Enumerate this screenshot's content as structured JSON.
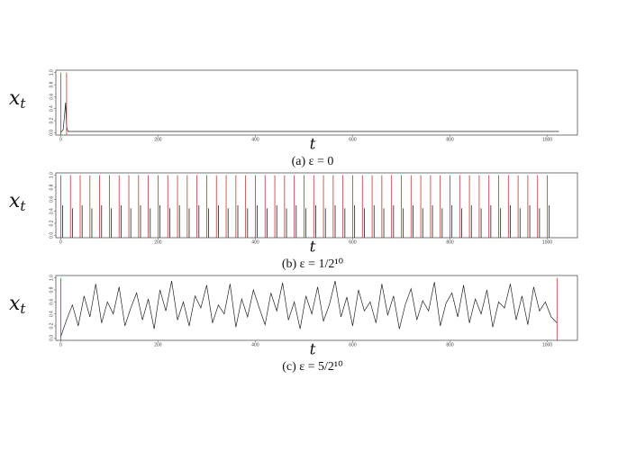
{
  "chart_data": [
    {
      "type": "line",
      "ylabel": "x",
      "ylabel_subscript": "t",
      "xlabel": "t",
      "caption": "(a) ε = 0",
      "xlim": [
        -10,
        1062
      ],
      "ylim": [
        -0.04,
        1.04
      ],
      "xticks": [
        0,
        200,
        400,
        600,
        800,
        1000
      ],
      "yticks": [
        {
          "value": 0,
          "label": "0.0"
        },
        0.2,
        0.4,
        0.6,
        0.8,
        {
          "value": 1,
          "label": "1.0"
        }
      ],
      "series": [
        {
          "color": "#222222",
          "style": "line",
          "x": [
            0,
            5,
            8,
            10,
            12,
            15,
            1024
          ],
          "values": [
            0,
            0.05,
            0.3,
            0.5,
            0.1,
            0.02,
            0.02
          ]
        },
        {
          "color": "#c0392b",
          "style": "spikes",
          "x": [
            0,
            12
          ],
          "values": [
            1,
            1
          ]
        }
      ]
    },
    {
      "type": "line",
      "ylabel": "x",
      "ylabel_subscript": "t",
      "xlabel": "t",
      "caption": "(b) ε = 1/2¹⁰",
      "xlim": [
        -10,
        1062
      ],
      "ylim": [
        -0.04,
        1.04
      ],
      "xticks": [
        0,
        200,
        400,
        600,
        800,
        1000
      ],
      "yticks": [
        {
          "value": 0,
          "label": "0.0"
        },
        0.2,
        0.4,
        0.6,
        0.8,
        {
          "value": 1,
          "label": "1.0"
        }
      ],
      "series": [
        {
          "color": "#c0392b",
          "style": "spikes",
          "x": [
            0,
            20,
            40,
            60,
            80,
            100,
            120,
            140,
            160,
            180,
            200,
            220,
            240,
            260,
            280,
            300,
            320,
            340,
            360,
            380,
            400,
            420,
            440,
            460,
            480,
            500,
            520,
            540,
            560,
            580,
            600,
            620,
            640,
            660,
            680,
            700,
            720,
            740,
            760,
            780,
            800,
            820,
            840,
            860,
            880,
            900,
            920,
            940,
            960,
            980,
            1000
          ],
          "values": [
            1,
            1,
            1,
            1,
            1,
            1,
            1,
            1,
            1,
            1,
            1,
            1,
            1,
            1,
            1,
            1,
            1,
            1,
            1,
            1,
            1,
            1,
            1,
            1,
            1,
            1,
            1,
            1,
            1,
            1,
            1,
            1,
            1,
            1,
            1,
            1,
            1,
            1,
            1,
            1,
            1,
            1,
            1,
            1,
            1,
            1,
            1,
            1,
            1,
            1,
            1
          ]
        },
        {
          "color": "#222222",
          "style": "spikes",
          "x": [
            4,
            24,
            44,
            64,
            84,
            104,
            124,
            144,
            164,
            184,
            204,
            224,
            244,
            264,
            284,
            304,
            324,
            344,
            364,
            384,
            404,
            424,
            444,
            464,
            484,
            504,
            524,
            544,
            564,
            584,
            604,
            624,
            644,
            664,
            684,
            704,
            724,
            744,
            764,
            784,
            804,
            824,
            844,
            864,
            884,
            904,
            924,
            944,
            964,
            984,
            1004
          ],
          "values": [
            0.5,
            0.45,
            0.5,
            0.45,
            0.5,
            0.45,
            0.5,
            0.45,
            0.5,
            0.45,
            0.5,
            0.45,
            0.5,
            0.45,
            0.5,
            0.45,
            0.5,
            0.45,
            0.5,
            0.45,
            0.5,
            0.45,
            0.5,
            0.45,
            0.5,
            0.45,
            0.5,
            0.45,
            0.5,
            0.45,
            0.5,
            0.45,
            0.5,
            0.45,
            0.5,
            0.45,
            0.5,
            0.45,
            0.5,
            0.45,
            0.5,
            0.45,
            0.5,
            0.45,
            0.5,
            0.45,
            0.5,
            0.45,
            0.5,
            0.45,
            0.5
          ]
        }
      ]
    },
    {
      "type": "line",
      "ylabel": "x",
      "ylabel_subscript": "t",
      "xlabel": "t",
      "caption": "(c) ε = 5/2¹⁰",
      "xlim": [
        -10,
        1062
      ],
      "ylim": [
        -0.04,
        1.04
      ],
      "xticks": [
        0,
        200,
        400,
        600,
        800,
        1000
      ],
      "yticks": [
        {
          "value": 0,
          "label": "0.0"
        },
        0.2,
        0.4,
        0.6,
        0.8,
        {
          "value": 1,
          "label": "1.0"
        }
      ],
      "series": [
        {
          "color": "#222222",
          "style": "line",
          "x": [
            0,
            12,
            24,
            36,
            48,
            60,
            72,
            84,
            96,
            108,
            120,
            132,
            144,
            156,
            168,
            180,
            192,
            204,
            216,
            228,
            240,
            252,
            264,
            276,
            288,
            300,
            312,
            324,
            336,
            348,
            360,
            372,
            384,
            396,
            408,
            420,
            432,
            444,
            456,
            468,
            480,
            492,
            504,
            516,
            528,
            540,
            552,
            564,
            576,
            588,
            600,
            612,
            624,
            636,
            648,
            660,
            672,
            684,
            696,
            708,
            720,
            732,
            744,
            756,
            768,
            780,
            792,
            804,
            816,
            828,
            840,
            852,
            864,
            876,
            888,
            900,
            912,
            924,
            936,
            948,
            960,
            972,
            984,
            996,
            1008,
            1020
          ],
          "values": [
            0.02,
            0.3,
            0.55,
            0.2,
            0.7,
            0.35,
            0.9,
            0.25,
            0.6,
            0.4,
            0.85,
            0.2,
            0.5,
            0.75,
            0.3,
            0.65,
            0.15,
            0.8,
            0.45,
            0.95,
            0.3,
            0.6,
            0.2,
            0.7,
            0.5,
            0.88,
            0.25,
            0.55,
            0.4,
            0.9,
            0.18,
            0.65,
            0.35,
            0.8,
            0.5,
            0.22,
            0.75,
            0.45,
            0.92,
            0.3,
            0.6,
            0.15,
            0.7,
            0.4,
            0.85,
            0.28,
            0.55,
            0.95,
            0.35,
            0.68,
            0.2,
            0.8,
            0.45,
            0.6,
            0.25,
            0.9,
            0.38,
            0.7,
            0.15,
            0.55,
            0.82,
            0.3,
            0.62,
            0.45,
            0.93,
            0.2,
            0.58,
            0.75,
            0.35,
            0.88,
            0.25,
            0.65,
            0.4,
            0.8,
            0.18,
            0.6,
            0.5,
            0.9,
            0.3,
            0.7,
            0.22,
            0.85,
            0.45,
            0.6,
            0.35,
            0.25
          ]
        },
        {
          "color": "#c0392b",
          "style": "spikes",
          "x": [
            0,
            1020
          ],
          "values": [
            1,
            1
          ]
        }
      ]
    }
  ]
}
